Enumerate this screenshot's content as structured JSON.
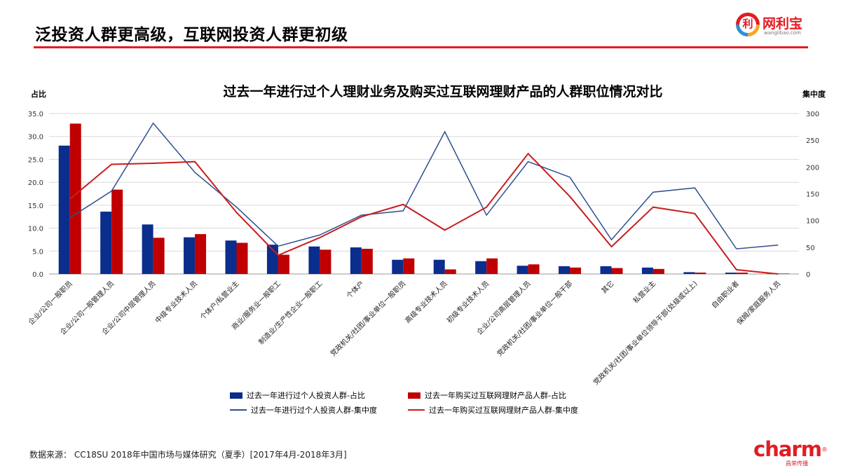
{
  "header": {
    "title": "泛投资人群更高级，互联网投资人群更初级"
  },
  "logo_top": {
    "glyph": "利",
    "brand": "网利宝",
    "domain": "wanglibao.com"
  },
  "footer": {
    "source": "数据来源：   CC18SU 2018年中国市场与媒体研究（夏季）[2017年4月-2018年3月]"
  },
  "logo_bottom": {
    "word": "charm",
    "mark": "®",
    "sub": "昌荣传播"
  },
  "colors": {
    "accent": "#e31b23",
    "blue": "#0b2d8c",
    "red": "#c00000",
    "line_blue": "#2f4f8f",
    "line_red": "#c81e1e"
  },
  "chart_data": {
    "type": "bar",
    "title": "过去一年进行过个人理财业务及购买过互联网理财产品的人群职位情况对比",
    "ylabel": "占比",
    "y2label": "集中度",
    "ylim": [
      0,
      35
    ],
    "y2lim": [
      0,
      300
    ],
    "yticks": [
      "0.0",
      "5.0",
      "10.0",
      "15.0",
      "20.0",
      "25.0",
      "30.0",
      "35.0"
    ],
    "y2ticks": [
      "0",
      "50",
      "100",
      "150",
      "200",
      "250",
      "300"
    ],
    "grid": true,
    "legend_position": "bottom",
    "categories": [
      "企业/公司一般职员",
      "企业/公司一般管理人员",
      "企业/公司中层管理人员",
      "中级专业技术人员",
      "个体户/私营业主",
      "商业/服务业一般职工",
      "制造业/生产性企业一般职工",
      "个体户",
      "党政机关/社团/事业单位一般职员",
      "高级专业技术人员",
      "初级专业技术人员",
      "企业/公司高层管理人员",
      "党政机关/社团/事业单位一般干部",
      "其它",
      "私营业主",
      "党政机关/社团/事业单位领导干部(处级或以上)",
      "自由职业者",
      "保姆/家庭服务人员"
    ],
    "series": [
      {
        "name": "过去一年进行过个人投资人群-占比",
        "kind": "bar",
        "axis": "left",
        "values": [
          28.0,
          13.6,
          10.8,
          8.0,
          7.3,
          6.4,
          6.0,
          5.8,
          3.1,
          3.1,
          2.8,
          1.8,
          1.7,
          1.7,
          1.4,
          0.4,
          0.3,
          0.1
        ]
      },
      {
        "name": "过去一年购买过互联网理财产品人群-占比",
        "kind": "bar",
        "axis": "left",
        "values": [
          32.8,
          18.4,
          7.9,
          8.7,
          6.8,
          4.2,
          5.3,
          5.5,
          3.4,
          1.0,
          3.4,
          2.1,
          1.4,
          1.3,
          1.1,
          0.3,
          0.3,
          0.1
        ]
      },
      {
        "name": "过去一年进行过个人投资人群-集中度",
        "kind": "line",
        "axis": "right",
        "values": [
          105,
          155,
          282,
          190,
          125,
          52,
          73,
          110,
          118,
          266,
          110,
          210,
          181,
          64,
          153,
          161,
          47,
          54
        ]
      },
      {
        "name": "过去一年购买过互联网理财产品人群-集中度",
        "kind": "line",
        "axis": "right",
        "values": [
          140,
          205,
          207,
          210,
          115,
          35,
          68,
          107,
          130,
          82,
          125,
          225,
          145,
          51,
          125,
          113,
          8,
          0
        ]
      }
    ]
  }
}
